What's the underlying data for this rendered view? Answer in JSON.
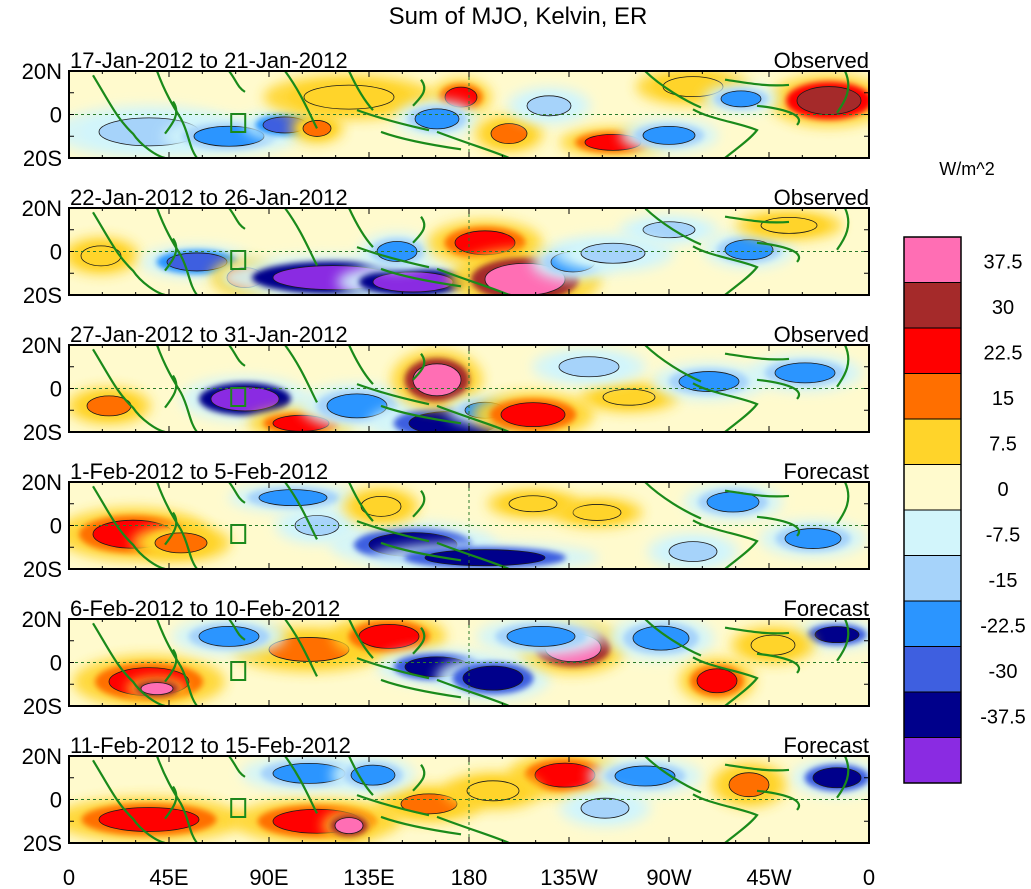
{
  "title": "Sum of MJO, Kelvin, ER",
  "colorbar": {
    "unit": "W/m^2",
    "levels": [
      "37.5",
      "30",
      "22.5",
      "15",
      "7.5",
      "0",
      "-7.5",
      "-15",
      "-22.5",
      "-30",
      "-37.5"
    ],
    "colors": [
      "#ff6eb4",
      "#a52a2a",
      "#ff0000",
      "#ff6f00",
      "#ffd42a",
      "#fffacd",
      "#d2f5fb",
      "#a6d3fa",
      "#2b95ff",
      "#3e5fe0",
      "#00008b",
      "#8a2be2"
    ]
  },
  "lat_labels": [
    "20N",
    "0",
    "20S"
  ],
  "lon_labels": [
    "0",
    "45E",
    "90E",
    "135E",
    "180",
    "135W",
    "90W",
    "45W",
    "0"
  ],
  "panels": [
    {
      "date": "17-Jan-2012 to 21-Jan-2012",
      "type": "Observed"
    },
    {
      "date": "22-Jan-2012 to 26-Jan-2012",
      "type": "Observed"
    },
    {
      "date": "27-Jan-2012 to 31-Jan-2012",
      "type": "Observed"
    },
    {
      "date": "1-Feb-2012 to 5-Feb-2012",
      "type": "Forecast"
    },
    {
      "date": "6-Feb-2012 to 10-Feb-2012",
      "type": "Forecast"
    },
    {
      "date": "11-Feb-2012 to 15-Feb-2012",
      "type": "Forecast"
    }
  ]
}
